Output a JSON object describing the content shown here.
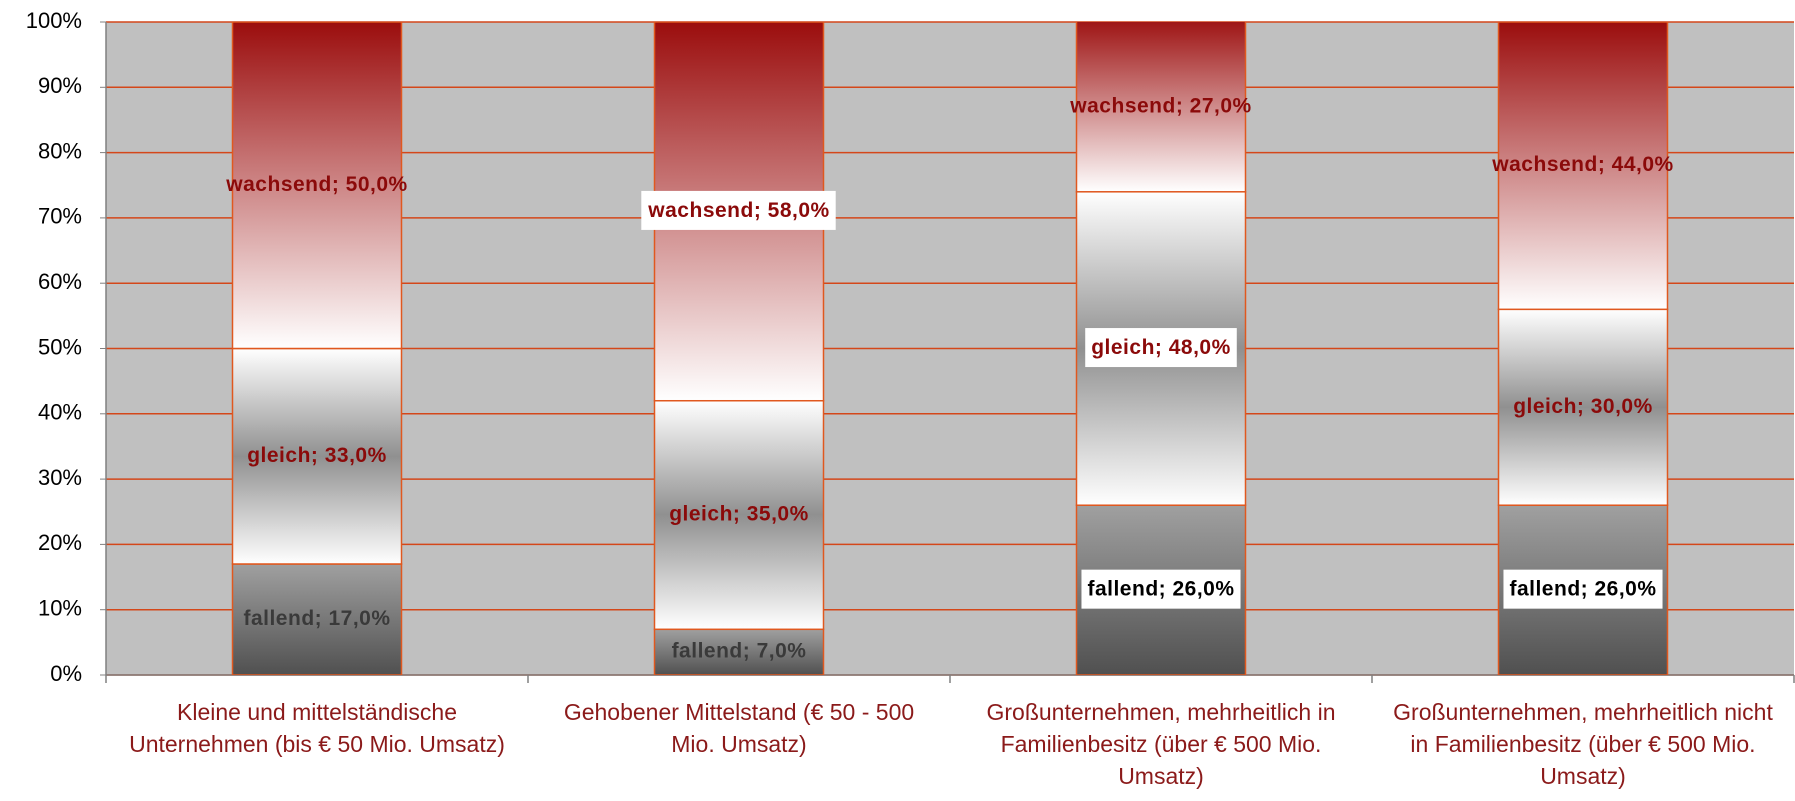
{
  "chart_data": {
    "type": "stacked_bar",
    "categories": [
      "Kleine und mittelständische Unternehmen (bis € 50 Mio. Umsatz)",
      "Gehobener Mittelstand (€ 50 - 500 Mio. Umsatz)",
      "Großunternehmen, mehrheitlich in Familienbesitz (über € 500 Mio. Umsatz)",
      "Großunternehmen, mehrheitlich nicht in Familienbesitz (über € 500 Mio. Umsatz)"
    ],
    "series": [
      {
        "name": "fallend",
        "color": "#505050",
        "values": [
          17,
          7,
          26,
          26
        ],
        "value_labels": [
          "fallend; 17,0%",
          "fallend; 7,0%",
          "fallend; 26,0%",
          "fallend; 26,0%"
        ]
      },
      {
        "name": "gleich",
        "color": "#909090",
        "values": [
          33,
          35,
          48,
          30
        ],
        "value_labels": [
          "gleich; 33,0%",
          "gleich; 35,0%",
          "gleich; 48,0%",
          "gleich; 30,0%"
        ]
      },
      {
        "name": "wachsend",
        "color": "#9b0d0d",
        "values": [
          50,
          58,
          27,
          44
        ],
        "value_labels": [
          "wachsend; 50,0%",
          "wachsend; 58,0%",
          "wachsend; 27,0%",
          "wachsend; 44,0%"
        ]
      }
    ],
    "ylim": [
      0,
      100
    ],
    "yticks": [
      {
        "value": 0,
        "label": "0%"
      },
      {
        "value": 10,
        "label": "10%"
      },
      {
        "value": 20,
        "label": "20%"
      },
      {
        "value": 30,
        "label": "30%"
      },
      {
        "value": 40,
        "label": "40%"
      },
      {
        "value": 50,
        "label": "50%"
      },
      {
        "value": 60,
        "label": "60%"
      },
      {
        "value": 70,
        "label": "70%"
      },
      {
        "value": 80,
        "label": "80%"
      },
      {
        "value": 90,
        "label": "90%"
      },
      {
        "value": 100,
        "label": "100%"
      }
    ],
    "grid": true
  }
}
